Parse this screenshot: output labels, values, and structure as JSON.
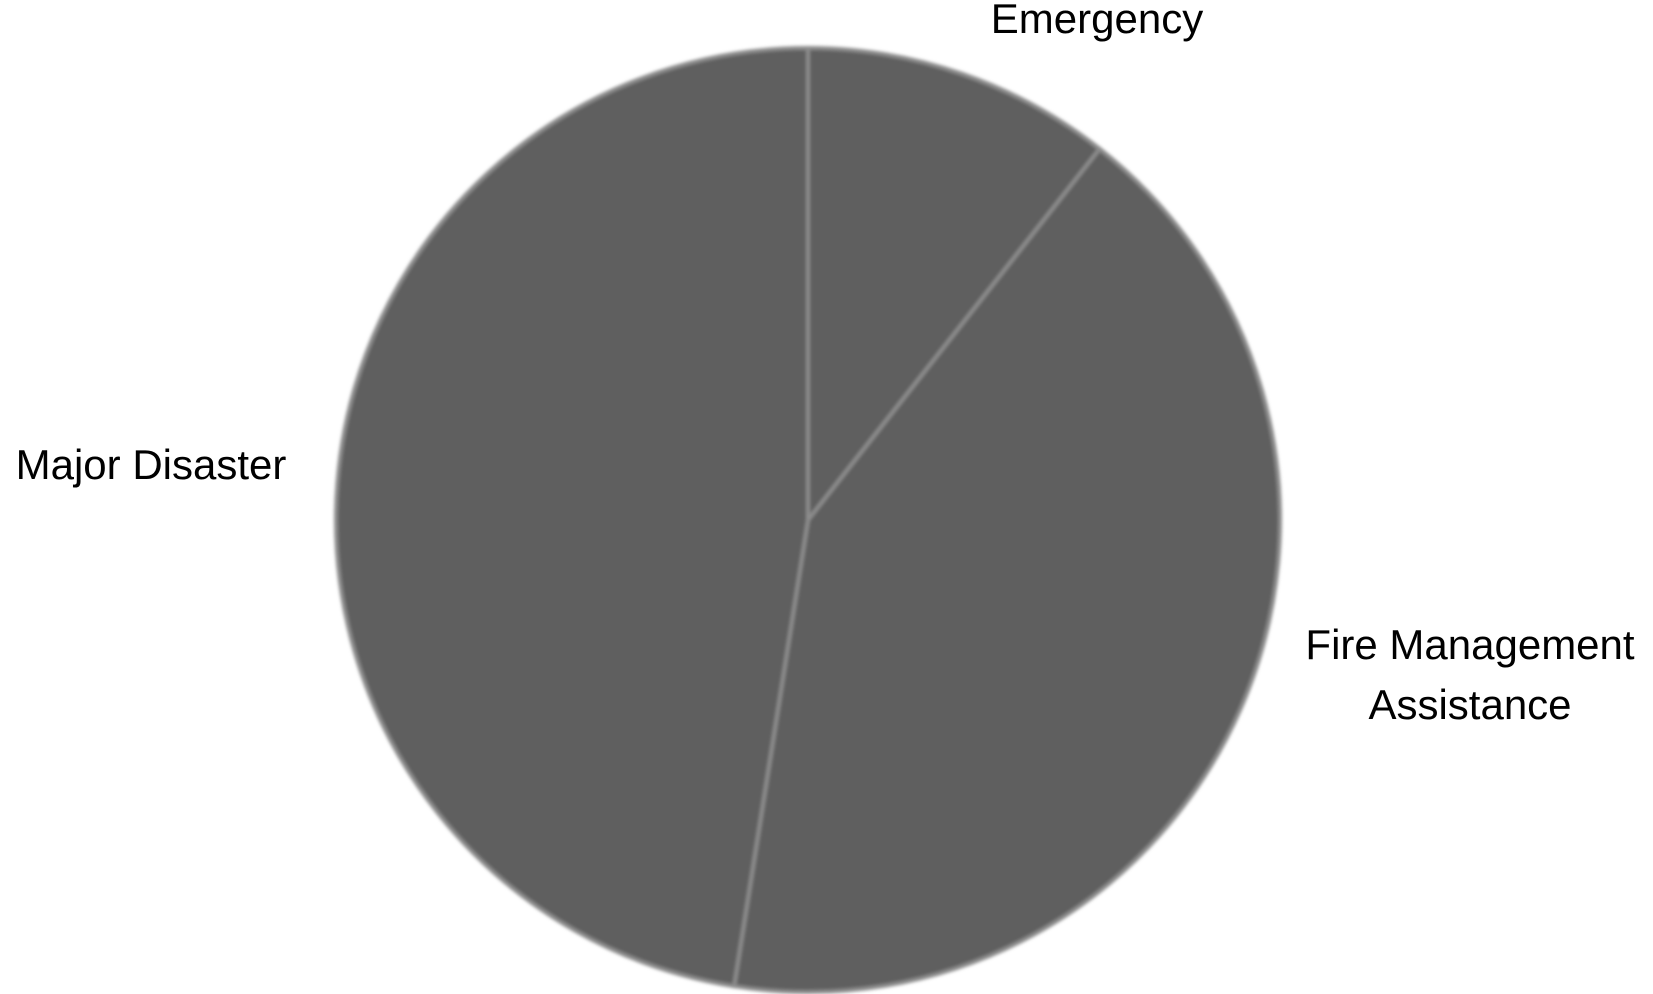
{
  "chart_data": {
    "type": "pie",
    "title": "",
    "slices": [
      {
        "label": [
          "Emergency"
        ],
        "value": 10.6
      },
      {
        "label": [
          "Fire Management",
          "Assistance"
        ],
        "value": 41.9
      },
      {
        "label": [
          "Major Disaster"
        ],
        "value": 47.5
      }
    ],
    "legend": "none",
    "colors": {
      "slice": "#5f5f5f",
      "separator": "#8c8c8c"
    }
  }
}
